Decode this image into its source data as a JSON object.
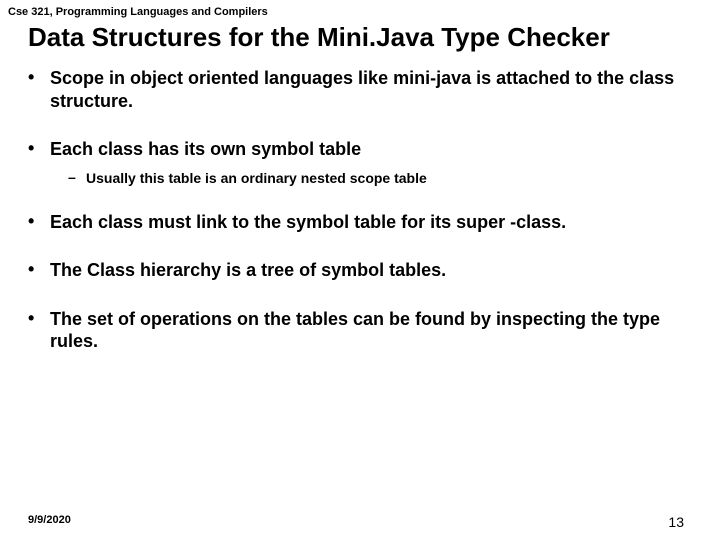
{
  "header": "Cse 321, Programming Languages and Compilers",
  "title": "Data Structures for the Mini.Java Type Checker",
  "bullets": [
    {
      "text": "Scope in object oriented languages like mini-java is attached to the class structure.",
      "sub": null
    },
    {
      "text": "Each class has its own symbol table",
      "sub": "Usually this table is an ordinary nested scope table"
    },
    {
      "text": "Each class must link to the symbol table for its super -class.",
      "sub": null
    },
    {
      "text": "The Class hierarchy is a tree of symbol tables.",
      "sub": null
    },
    {
      "text": "The set of operations on the tables can be found by inspecting the type rules.",
      "sub": null
    }
  ],
  "footer": {
    "date": "9/9/2020",
    "page": "13"
  },
  "colors": {
    "background": "#ffffff",
    "text": "#000000"
  }
}
